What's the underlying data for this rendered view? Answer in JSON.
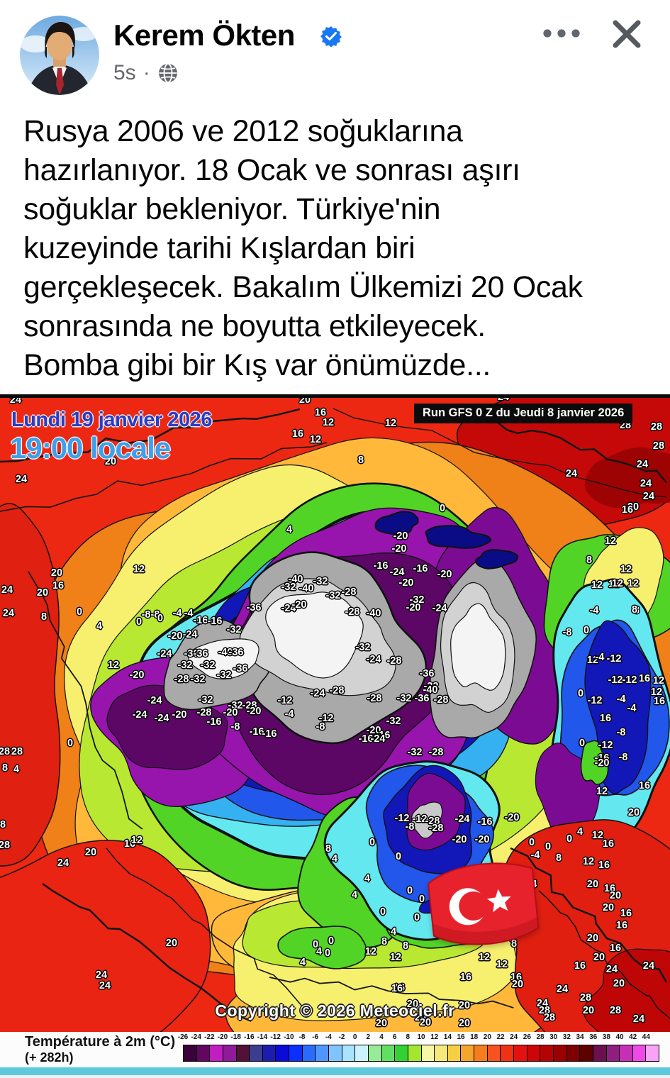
{
  "header": {
    "name": "Kerem Ökten",
    "verified": true,
    "time": "5s",
    "separator": "·"
  },
  "post": {
    "text": "Rusya 2006 ve 2012 soğuklarına\nhazırlanıyor. 18 Ocak ve sonrası aşırı\nsoğuklar bekleniyor. Türkiye'nin\nkuzeyinde tarihi Kışlardan biri\ngerçekleşecek. Bakalım Ülkemizi 20 Ocak\nsonrasında ne boyutta etkileyecek.\nBomba gibi bir Kış var önümüzde..."
  },
  "map": {
    "date_line1": "Lundi 19 janvier 2026",
    "date_line2": "19:00 locale",
    "run_label": "Run GFS 0 Z du Jeudi 8 janvier 2026",
    "copyright": "Copyright © 2026 Meteociel.fr",
    "flag": "turkish-flag",
    "temperature_labels": [
      [
        24,
        22,
        8
      ],
      [
        20,
        430,
        8
      ],
      [
        24,
        710,
        4
      ],
      [
        28,
        882,
        44
      ],
      [
        28,
        926,
        46
      ],
      [
        28,
        929,
        73
      ],
      [
        16,
        452,
        26
      ],
      [
        12,
        463,
        40
      ],
      [
        16,
        420,
        56
      ],
      [
        12,
        445,
        64
      ],
      [
        12,
        551,
        41
      ],
      [
        8,
        509,
        93
      ],
      [
        20,
        156,
        95
      ],
      [
        24,
        30,
        120
      ],
      [
        0,
        624,
        161
      ],
      [
        4,
        408,
        191
      ],
      [
        -20,
        565,
        200
      ],
      [
        -20,
        563,
        218
      ],
      [
        24,
        806,
        112
      ],
      [
        24,
        906,
        99
      ],
      [
        24,
        911,
        126
      ],
      [
        24,
        915,
        144
      ],
      [
        20,
        893,
        159
      ],
      [
        16,
        885,
        163
      ],
      [
        12,
        861,
        207
      ],
      [
        12,
        866,
        268
      ],
      [
        12,
        842,
        269
      ],
      [
        -8,
        800,
        336
      ],
      [
        0,
        827,
        333
      ],
      [
        -4,
        838,
        305
      ],
      [
        8,
        898,
        305
      ],
      [
        12,
        836,
        375
      ],
      [
        -4,
        846,
        371
      ],
      [
        -12,
        866,
        373
      ],
      [
        -12,
        868,
        403
      ],
      [
        -12,
        888,
        403
      ],
      [
        16,
        909,
        401
      ],
      [
        12,
        929,
        404
      ],
      [
        0,
        819,
        422
      ],
      [
        -4,
        876,
        430
      ],
      [
        12,
        926,
        420
      ],
      [
        16,
        930,
        433
      ],
      [
        -12,
        839,
        432
      ],
      [
        -4,
        891,
        443
      ],
      [
        16,
        854,
        457
      ],
      [
        -8,
        876,
        477
      ],
      [
        0,
        821,
        492
      ],
      [
        -12,
        854,
        495
      ],
      [
        -8,
        879,
        512
      ],
      [
        -16,
        849,
        513
      ],
      [
        -20,
        849,
        520
      ],
      [
        16,
        909,
        552
      ],
      [
        12,
        849,
        560
      ],
      [
        20,
        894,
        590
      ],
      [
        8,
        831,
        234
      ],
      [
        12,
        883,
        247
      ],
      [
        12,
        871,
        267
      ],
      [
        12,
        893,
        267
      ],
      [
        8,
        895,
        304
      ],
      [
        28,
        6,
        504
      ],
      [
        28,
        24,
        504
      ],
      [
        8,
        7,
        527
      ],
      [
        4,
        23,
        529
      ],
      [
        8,
        4,
        607
      ],
      [
        28,
        6,
        636
      ],
      [
        0,
        99,
        492
      ],
      [
        24,
        10,
        276
      ],
      [
        24,
        12,
        309
      ],
      [
        20,
        60,
        280
      ],
      [
        20,
        80,
        252
      ],
      [
        16,
        82,
        270
      ],
      [
        12,
        196,
        247
      ],
      [
        8,
        62,
        314
      ],
      [
        0,
        112,
        307
      ],
      [
        4,
        140,
        327
      ],
      [
        12,
        160,
        382
      ],
      [
        20,
        128,
        646
      ],
      [
        24,
        89,
        661
      ],
      [
        16,
        183,
        634
      ],
      [
        12,
        193,
        629
      ],
      [
        24,
        143,
        819
      ],
      [
        24,
        148,
        834
      ],
      [
        20,
        242,
        774
      ],
      [
        -20,
        193,
        396
      ],
      [
        -24,
        218,
        432
      ],
      [
        -24,
        197,
        452
      ],
      [
        -24,
        228,
        457
      ],
      [
        -20,
        253,
        452
      ],
      [
        -28,
        288,
        449
      ],
      [
        -32,
        290,
        431
      ],
      [
        -32,
        332,
        439
      ],
      [
        -28,
        352,
        439
      ],
      [
        -20,
        325,
        449
      ],
      [
        -20,
        358,
        447
      ],
      [
        -16,
        302,
        462
      ],
      [
        -8,
        332,
        469
      ],
      [
        -16,
        362,
        476
      ],
      [
        -16,
        380,
        479
      ],
      [
        -24,
        268,
        339
      ],
      [
        -20,
        247,
        341
      ],
      [
        -16,
        283,
        319
      ],
      [
        -16,
        303,
        320
      ],
      [
        -4,
        250,
        309
      ],
      [
        -4,
        266,
        309
      ],
      [
        -8,
        206,
        311
      ],
      [
        -8,
        219,
        311
      ],
      [
        0,
        226,
        316
      ],
      [
        0,
        196,
        321
      ],
      [
        -24,
        232,
        366
      ],
      [
        -36,
        270,
        366
      ],
      [
        -36,
        283,
        366
      ],
      [
        -40,
        318,
        364
      ],
      [
        -36,
        333,
        364
      ],
      [
        -32,
        261,
        382
      ],
      [
        -32,
        293,
        382
      ],
      [
        -36,
        339,
        387
      ],
      [
        -28,
        256,
        402
      ],
      [
        -32,
        279,
        402
      ],
      [
        -32,
        316,
        396
      ],
      [
        -36,
        358,
        301
      ],
      [
        -32,
        330,
        332
      ],
      [
        -40,
        417,
        261
      ],
      [
        -32,
        452,
        264
      ],
      [
        -32,
        407,
        272
      ],
      [
        -40,
        432,
        274
      ],
      [
        -28,
        492,
        279
      ],
      [
        -32,
        470,
        284
      ],
      [
        -24,
        407,
        302
      ],
      [
        -20,
        422,
        297
      ],
      [
        -32,
        588,
        290
      ],
      [
        -28,
        497,
        307
      ],
      [
        -40,
        527,
        309
      ],
      [
        -24,
        560,
        251
      ],
      [
        -16,
        537,
        242
      ],
      [
        -16,
        593,
        246
      ],
      [
        -20,
        627,
        254
      ],
      [
        -24,
        620,
        302
      ],
      [
        -20,
        573,
        266
      ],
      [
        -20,
        583,
        301
      ],
      [
        -24,
        448,
        422
      ],
      [
        -28,
        475,
        418
      ],
      [
        -12,
        402,
        432
      ],
      [
        -4,
        408,
        451
      ],
      [
        -12,
        460,
        457
      ],
      [
        -8,
        452,
        469
      ],
      [
        -32,
        512,
        357
      ],
      [
        -24,
        527,
        374
      ],
      [
        -28,
        556,
        376
      ],
      [
        -28,
        528,
        429
      ],
      [
        -32,
        570,
        429
      ],
      [
        -36,
        595,
        429
      ],
      [
        -36,
        602,
        394
      ],
      [
        -32,
        608,
        412
      ],
      [
        -40,
        607,
        417
      ],
      [
        -28,
        622,
        431
      ],
      [
        -20,
        527,
        474
      ],
      [
        -32,
        555,
        461
      ],
      [
        -16,
        540,
        481
      ],
      [
        -16,
        516,
        486
      ],
      [
        -24,
        533,
        486
      ],
      [
        -32,
        585,
        505
      ],
      [
        -28,
        615,
        505
      ],
      [
        -12,
        567,
        598
      ],
      [
        -12,
        592,
        599
      ],
      [
        -28,
        610,
        602
      ],
      [
        -24,
        652,
        599
      ],
      [
        -16,
        684,
        603
      ],
      [
        -20,
        722,
        597
      ],
      [
        -8,
        578,
        610
      ],
      [
        -28,
        615,
        612
      ],
      [
        -20,
        648,
        628
      ],
      [
        -20,
        680,
        628
      ],
      [
        0,
        525,
        632
      ],
      [
        8,
        463,
        641
      ],
      [
        4,
        472,
        655
      ],
      [
        0,
        562,
        652
      ],
      [
        4,
        518,
        683
      ],
      [
        0,
        578,
        700
      ],
      [
        0,
        595,
        712
      ],
      [
        4,
        500,
        706
      ],
      [
        0,
        540,
        730
      ],
      [
        0,
        588,
        738
      ],
      [
        4,
        555,
        758
      ],
      [
        8,
        542,
        772
      ],
      [
        8,
        572,
        778
      ],
      [
        4,
        450,
        786
      ],
      [
        0,
        462,
        788
      ],
      [
        4,
        427,
        801
      ],
      [
        12,
        523,
        786
      ],
      [
        0,
        445,
        776
      ],
      [
        0,
        467,
        771
      ],
      [
        4,
        818,
        617
      ],
      [
        0,
        803,
        627
      ],
      [
        12,
        843,
        622
      ],
      [
        16,
        858,
        634
      ],
      [
        8,
        788,
        654
      ],
      [
        12,
        830,
        659
      ],
      [
        16,
        852,
        664
      ],
      [
        -4,
        751,
        691
      ],
      [
        8,
        740,
        682
      ],
      [
        20,
        836,
        691
      ],
      [
        16,
        860,
        697
      ],
      [
        20,
        868,
        707
      ],
      [
        20,
        858,
        724
      ],
      [
        16,
        883,
        732
      ],
      [
        16,
        877,
        749
      ],
      [
        20,
        836,
        767
      ],
      [
        16,
        868,
        781
      ],
      [
        20,
        845,
        794
      ],
      [
        16,
        818,
        806
      ],
      [
        24,
        863,
        811
      ],
      [
        24,
        915,
        806
      ],
      [
        20,
        873,
        831
      ],
      [
        28,
        826,
        851
      ],
      [
        24,
        793,
        839
      ],
      [
        24,
        765,
        859
      ],
      [
        28,
        768,
        869
      ],
      [
        28,
        775,
        879
      ],
      [
        28,
        868,
        869
      ],
      [
        24,
        901,
        881
      ],
      [
        20,
        830,
        869
      ],
      [
        0,
        750,
        632
      ],
      [
        0,
        773,
        638
      ],
      [
        -4,
        755,
        650
      ],
      [
        12,
        683,
        794
      ],
      [
        12,
        708,
        804
      ],
      [
        16,
        728,
        822
      ],
      [
        20,
        730,
        832
      ],
      [
        8,
        725,
        775
      ],
      [
        12,
        558,
        794
      ],
      [
        16,
        563,
        837
      ],
      [
        16,
        657,
        822
      ],
      [
        20,
        582,
        860
      ],
      [
        20,
        655,
        862
      ],
      [
        20,
        593,
        879
      ],
      [
        16,
        560,
        838
      ],
      [
        20,
        538,
        887
      ],
      [
        20,
        600,
        886
      ],
      [
        20,
        655,
        887
      ]
    ]
  },
  "legend": {
    "title": "Température à 2m (°C)",
    "subtitle": "(+ 282h)",
    "ticks": [
      "-26",
      "-24",
      "-22",
      "-20",
      "-18",
      "-16",
      "-14",
      "-12",
      "-10",
      "-8",
      "-6",
      "-4",
      "-2",
      "0",
      "2",
      "4",
      "6",
      "8",
      "10",
      "12",
      "14",
      "16",
      "18",
      "20",
      "22",
      "24",
      "26",
      "28",
      "30",
      "32",
      "34",
      "36",
      "38",
      "40",
      "42",
      "44"
    ],
    "colors": [
      "#3a013a",
      "#62075f",
      "#c01ec0",
      "#8f1b9b",
      "#551038",
      "#3d3d8f",
      "#1c1cb0",
      "#0b0bd8",
      "#0a2fff",
      "#2b6bff",
      "#4f97ff",
      "#7fc4ff",
      "#a8e4ff",
      "#ccf2fe",
      "#96ec96",
      "#62df62",
      "#32d232",
      "#a2e630",
      "#f7f7a8",
      "#f6e87a",
      "#f6cf42",
      "#f6a42c",
      "#f67d1e",
      "#f6531f",
      "#ee3214",
      "#e31210",
      "#cf0505",
      "#b50202",
      "#9b0101",
      "#7f0000",
      "#5c0000",
      "#6b0f4f",
      "#8f1f7f",
      "#c72fb7",
      "#ef49e9",
      "#f9a3f6"
    ]
  },
  "colors": {
    "verified_blue": "#1877f2",
    "meta_gray": "#65676b",
    "flag_red": "#e8222d",
    "strip_cyan": "#5ec8dc"
  }
}
